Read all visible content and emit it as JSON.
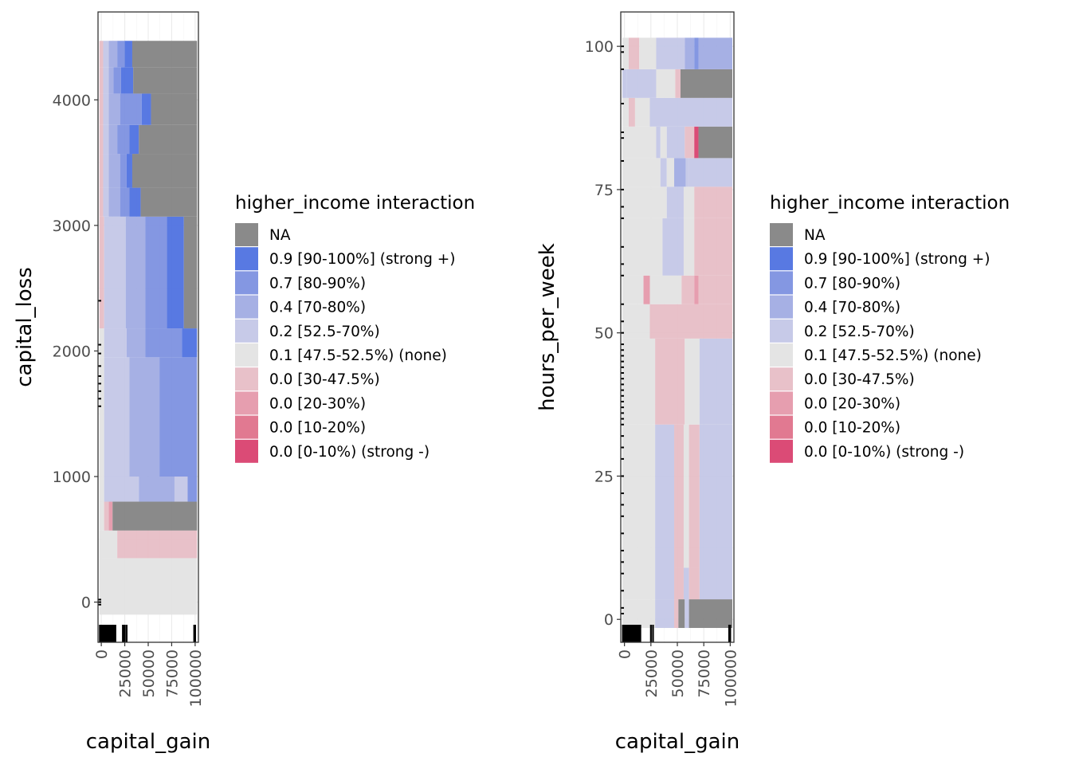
{
  "palette": {
    "NA": "#808080",
    "0.9": "#4a6ee0",
    "0.7": "#7a8ee0",
    "0.4": "#9ea9e2",
    "0.2": "#c2c6e6",
    "0.1": "#e2e2e2",
    "0.0a": "#e6bcc4",
    "0.0b": "#e496a8",
    "0.0c": "#de6e88",
    "0.0d": "#d83c6a"
  },
  "chart_data": [
    {
      "type": "heatmap",
      "title": "",
      "xlabel": "capital_gain",
      "ylabel": "capital_loss",
      "xlim": [
        -3500,
        103500
      ],
      "ylim": [
        -320,
        4700
      ],
      "x_ticks": [
        "0",
        "25000",
        "50000",
        "75000",
        "100000"
      ],
      "x_tick_values": [
        0,
        25000,
        50000,
        75000,
        100000
      ],
      "y_ticks": [
        "0",
        "1000",
        "2000",
        "3000",
        "4000"
      ],
      "y_tick_values": [
        0,
        1000,
        2000,
        3000,
        4000
      ],
      "grid": true,
      "rug": true,
      "legend_title": "higher_income interaction",
      "legend_position": "right",
      "legend": [
        {
          "key": "NA",
          "label": "NA"
        },
        {
          "key": "0.9",
          "label": "0.9 [90-100%] (strong +)"
        },
        {
          "key": "0.7",
          "label": "0.7 [80-90%)"
        },
        {
          "key": "0.4",
          "label": "0.4 [70-80%)"
        },
        {
          "key": "0.2",
          "label": "0.2 [52.5-70%)"
        },
        {
          "key": "0.1",
          "label": "0.1 [47.5-52.5%) (none)"
        },
        {
          "key": "0.0a",
          "label": "0.0 [30-47.5%)"
        },
        {
          "key": "0.0b",
          "label": "0.0 [20-30%)"
        },
        {
          "key": "0.0c",
          "label": "0.0 [10-20%)"
        },
        {
          "key": "0.0d",
          "label": "0.0 [0-10%) (strong -)"
        }
      ],
      "rows": [
        {
          "y0": -100,
          "y1": 350,
          "cells": [
            [
              -2000,
              102000,
              "0.1"
            ]
          ]
        },
        {
          "y0": 350,
          "y1": 570,
          "cells": [
            [
              -2000,
              17000,
              "0.1"
            ],
            [
              17000,
              102000,
              "0.0a"
            ]
          ]
        },
        {
          "y0": 570,
          "y1": 800,
          "cells": [
            [
              -2000,
              3000,
              "0.1"
            ],
            [
              3000,
              8000,
              "0.0a"
            ],
            [
              8000,
              12000,
              "0.0b"
            ],
            [
              12000,
              102000,
              "NA"
            ]
          ]
        },
        {
          "y0": 800,
          "y1": 1000,
          "cells": [
            [
              -2000,
              3000,
              "0.1"
            ],
            [
              3000,
              40000,
              "0.2"
            ],
            [
              40000,
              78000,
              "0.4"
            ],
            [
              78000,
              92000,
              "0.2"
            ],
            [
              92000,
              102000,
              "0.7"
            ]
          ]
        },
        {
          "y0": 1000,
          "y1": 1950,
          "cells": [
            [
              -2000,
              3000,
              "0.1"
            ],
            [
              3000,
              30000,
              "0.2"
            ],
            [
              30000,
              62000,
              "0.4"
            ],
            [
              62000,
              102000,
              "0.7"
            ]
          ]
        },
        {
          "y0": 1950,
          "y1": 2180,
          "cells": [
            [
              -2000,
              3000,
              "0.1"
            ],
            [
              3000,
              27000,
              "0.2"
            ],
            [
              27000,
              47000,
              "0.4"
            ],
            [
              47000,
              86000,
              "0.7"
            ],
            [
              86000,
              102000,
              "0.9"
            ]
          ]
        },
        {
          "y0": 2180,
          "y1": 3070,
          "cells": [
            [
              -2000,
              3000,
              "0.0a"
            ],
            [
              3000,
              26000,
              "0.2"
            ],
            [
              26000,
              47000,
              "0.4"
            ],
            [
              47000,
              70000,
              "0.7"
            ],
            [
              70000,
              88000,
              "0.9"
            ],
            [
              88000,
              102000,
              "NA"
            ]
          ]
        },
        {
          "y0": 3070,
          "y1": 3300,
          "cells": [
            [
              -2000,
              2000,
              "0.0a"
            ],
            [
              2000,
              8000,
              "0.2"
            ],
            [
              8000,
              20000,
              "0.4"
            ],
            [
              20000,
              30000,
              "0.7"
            ],
            [
              30000,
              42000,
              "0.9"
            ],
            [
              42000,
              102000,
              "NA"
            ]
          ]
        },
        {
          "y0": 3300,
          "y1": 3570,
          "cells": [
            [
              -2000,
              2000,
              "0.0a"
            ],
            [
              2000,
              8000,
              "0.2"
            ],
            [
              8000,
              20000,
              "0.4"
            ],
            [
              20000,
              27000,
              "0.7"
            ],
            [
              27000,
              33000,
              "0.9"
            ],
            [
              33000,
              102000,
              "NA"
            ]
          ]
        },
        {
          "y0": 3570,
          "y1": 3800,
          "cells": [
            [
              -2000,
              2000,
              "0.0a"
            ],
            [
              2000,
              8000,
              "0.2"
            ],
            [
              8000,
              17000,
              "0.4"
            ],
            [
              17000,
              30000,
              "0.7"
            ],
            [
              30000,
              40000,
              "0.9"
            ],
            [
              40000,
              102000,
              "NA"
            ]
          ]
        },
        {
          "y0": 3800,
          "y1": 4050,
          "cells": [
            [
              -2000,
              2000,
              "0.0a"
            ],
            [
              2000,
              8000,
              "0.2"
            ],
            [
              8000,
              20000,
              "0.4"
            ],
            [
              20000,
              43000,
              "0.7"
            ],
            [
              43000,
              53000,
              "0.9"
            ],
            [
              53000,
              102000,
              "NA"
            ]
          ]
        },
        {
          "y0": 4050,
          "y1": 4260,
          "cells": [
            [
              -2000,
              2000,
              "0.0a"
            ],
            [
              2000,
              8000,
              "0.2"
            ],
            [
              8000,
              13000,
              "0.4"
            ],
            [
              13000,
              21000,
              "0.7"
            ],
            [
              21000,
              34000,
              "0.9"
            ],
            [
              34000,
              102000,
              "NA"
            ]
          ]
        },
        {
          "y0": 4260,
          "y1": 4470,
          "cells": [
            [
              -2000,
              2000,
              "0.0a"
            ],
            [
              2000,
              8000,
              "0.2"
            ],
            [
              8000,
              17000,
              "0.4"
            ],
            [
              17000,
              25000,
              "0.7"
            ],
            [
              25000,
              33000,
              "0.9"
            ],
            [
              33000,
              102000,
              "NA"
            ]
          ]
        }
      ],
      "rug_x": [
        -1500,
        -800,
        0,
        800,
        1500,
        2300,
        3000,
        3800,
        4500,
        5300,
        6000,
        6800,
        7500,
        8300,
        9000,
        10000,
        11000,
        12000,
        12800,
        14000,
        15000,
        23000,
        24000,
        25000,
        27000,
        99000,
        100000
      ],
      "rug_y": [
        -20,
        0,
        20,
        1560,
        1620,
        1680,
        1740,
        1800,
        1880,
        1980,
        2050,
        2400
      ]
    },
    {
      "type": "heatmap",
      "title": "",
      "xlabel": "capital_gain",
      "ylabel": "hours_per_week",
      "xlim": [
        -3500,
        103500
      ],
      "ylim": [
        -4,
        106
      ],
      "x_ticks": [
        "0",
        "25000",
        "50000",
        "75000",
        "100000"
      ],
      "x_tick_values": [
        0,
        25000,
        50000,
        75000,
        100000
      ],
      "y_ticks": [
        "0",
        "25",
        "50",
        "75",
        "100"
      ],
      "y_tick_values": [
        0,
        25,
        50,
        75,
        100
      ],
      "grid": true,
      "rug": true,
      "legend_title": "higher_income interaction",
      "legend_position": "right",
      "legend": [
        {
          "key": "NA",
          "label": "NA"
        },
        {
          "key": "0.9",
          "label": "0.9 [90-100%] (strong +)"
        },
        {
          "key": "0.7",
          "label": "0.7 [80-90%)"
        },
        {
          "key": "0.4",
          "label": "0.4 [70-80%)"
        },
        {
          "key": "0.2",
          "label": "0.2 [52.5-70%)"
        },
        {
          "key": "0.1",
          "label": "0.1 [47.5-52.5%) (none)"
        },
        {
          "key": "0.0a",
          "label": "0.0 [30-47.5%)"
        },
        {
          "key": "0.0b",
          "label": "0.0 [20-30%)"
        },
        {
          "key": "0.0c",
          "label": "0.0 [10-20%)"
        },
        {
          "key": "0.0d",
          "label": "0.0 [0-10%) (strong -)"
        }
      ],
      "rows": [
        {
          "y0": -1.5,
          "y1": 3.5,
          "cells": [
            [
              -2000,
              29000,
              "0.1"
            ],
            [
              29000,
              47000,
              "0.2"
            ],
            [
              47000,
              51000,
              "0.0a"
            ],
            [
              51000,
              57000,
              "NA"
            ],
            [
              57000,
              61000,
              "0.2"
            ],
            [
              61000,
              102000,
              "NA"
            ]
          ]
        },
        {
          "y0": 3.5,
          "y1": 9,
          "cells": [
            [
              -2000,
              29000,
              "0.1"
            ],
            [
              29000,
              47000,
              "0.2"
            ],
            [
              47000,
              56000,
              "0.0a"
            ],
            [
              56000,
              61000,
              "0.2"
            ],
            [
              61000,
              71000,
              "0.0a"
            ],
            [
              71000,
              102000,
              "0.2"
            ]
          ]
        },
        {
          "y0": 9,
          "y1": 34,
          "cells": [
            [
              -2000,
              29000,
              "0.1"
            ],
            [
              29000,
              47000,
              "0.2"
            ],
            [
              47000,
              56000,
              "0.0a"
            ],
            [
              56000,
              61000,
              "0.1"
            ],
            [
              61000,
              71000,
              "0.0a"
            ],
            [
              71000,
              102000,
              "0.2"
            ]
          ]
        },
        {
          "y0": 34,
          "y1": 49,
          "cells": [
            [
              -2000,
              29000,
              "0.1"
            ],
            [
              29000,
              57000,
              "0.0a"
            ],
            [
              57000,
              71000,
              "0.1"
            ],
            [
              71000,
              102000,
              "0.2"
            ]
          ]
        },
        {
          "y0": 49,
          "y1": 55,
          "cells": [
            [
              -2000,
              24000,
              "0.1"
            ],
            [
              24000,
              102000,
              "0.0a"
            ]
          ]
        },
        {
          "y0": 55,
          "y1": 60,
          "cells": [
            [
              -2000,
              18000,
              "0.1"
            ],
            [
              18000,
              24000,
              "0.0b"
            ],
            [
              24000,
              54000,
              "0.1"
            ],
            [
              54000,
              66000,
              "0.0a"
            ],
            [
              66000,
              70000,
              "0.0b"
            ],
            [
              70000,
              102000,
              "0.0a"
            ]
          ]
        },
        {
          "y0": 60,
          "y1": 70,
          "cells": [
            [
              -2000,
              36000,
              "0.1"
            ],
            [
              36000,
              56000,
              "0.2"
            ],
            [
              56000,
              66000,
              "0.1"
            ],
            [
              66000,
              102000,
              "0.0a"
            ]
          ]
        },
        {
          "y0": 70,
          "y1": 75.5,
          "cells": [
            [
              -2000,
              40000,
              "0.1"
            ],
            [
              40000,
              56000,
              "0.2"
            ],
            [
              56000,
              66000,
              "0.1"
            ],
            [
              66000,
              102000,
              "0.0a"
            ]
          ]
        },
        {
          "y0": 75.5,
          "y1": 80.5,
          "cells": [
            [
              -2000,
              34000,
              "0.1"
            ],
            [
              34000,
              40000,
              "0.2"
            ],
            [
              40000,
              47000,
              "0.1"
            ],
            [
              47000,
              58000,
              "0.4"
            ],
            [
              58000,
              61000,
              "0.2"
            ],
            [
              61000,
              102000,
              "0.2"
            ]
          ]
        },
        {
          "y0": 80.5,
          "y1": 86,
          "cells": [
            [
              -2000,
              30000,
              "0.1"
            ],
            [
              30000,
              34000,
              "0.2"
            ],
            [
              34000,
              40000,
              "0.1"
            ],
            [
              40000,
              57000,
              "0.2"
            ],
            [
              57000,
              66000,
              "0.0a"
            ],
            [
              66000,
              70000,
              "0.0d"
            ],
            [
              70000,
              102000,
              "NA"
            ]
          ]
        },
        {
          "y0": 86,
          "y1": 91,
          "cells": [
            [
              -2000,
              4000,
              "0.1"
            ],
            [
              4000,
              10000,
              "0.0a"
            ],
            [
              10000,
              24000,
              "0.1"
            ],
            [
              24000,
              102000,
              "0.2"
            ]
          ]
        },
        {
          "y0": 91,
          "y1": 96,
          "cells": [
            [
              -2000,
              2000,
              "0.2"
            ],
            [
              2000,
              30000,
              "0.2"
            ],
            [
              30000,
              48000,
              "0.1"
            ],
            [
              48000,
              53000,
              "0.0a"
            ],
            [
              53000,
              102000,
              "NA"
            ]
          ]
        },
        {
          "y0": 96,
          "y1": 101.5,
          "cells": [
            [
              -2000,
              4000,
              "0.1"
            ],
            [
              4000,
              14000,
              "0.0a"
            ],
            [
              14000,
              30000,
              "0.1"
            ],
            [
              30000,
              57000,
              "0.2"
            ],
            [
              57000,
              66000,
              "0.4"
            ],
            [
              66000,
              70000,
              "0.7"
            ],
            [
              70000,
              102000,
              "0.4"
            ]
          ]
        }
      ],
      "rug_x": [
        -1500,
        -800,
        0,
        800,
        1500,
        2300,
        3000,
        3800,
        4500,
        5300,
        6000,
        6800,
        7500,
        8300,
        9000,
        10000,
        11000,
        12000,
        12800,
        14000,
        15000,
        25000,
        27000,
        99000,
        100000
      ],
      "rug_y": [
        1,
        2,
        5,
        8,
        10,
        12,
        15,
        18,
        20,
        22,
        25,
        28,
        30,
        32,
        34,
        35,
        36,
        37,
        38,
        39,
        40,
        41,
        42,
        43,
        44,
        45,
        46,
        47,
        48,
        50,
        52,
        55,
        60,
        62,
        65,
        70,
        72,
        75,
        80,
        84,
        85,
        90,
        96,
        99,
        100
      ]
    }
  ]
}
